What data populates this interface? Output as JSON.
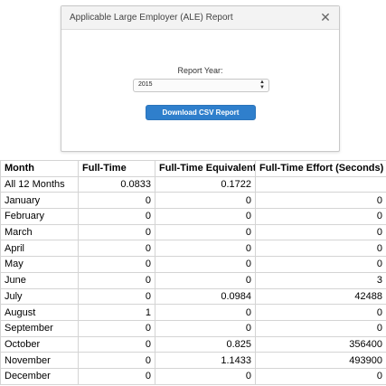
{
  "dialog": {
    "title": "Applicable Large Employer (ALE) Report",
    "close_glyph": "✕",
    "report_year_label": "Report Year:",
    "report_year_value": "2015",
    "download_button": "Download CSV Report"
  },
  "table": {
    "headers": [
      "Month",
      "Full-Time",
      "Full-Time Equivalent",
      "Full-Time Effort (Seconds)"
    ],
    "rows": [
      {
        "month": "All 12 Months",
        "full_time": "0.0833",
        "fte": "0.1722",
        "effort": ""
      },
      {
        "month": "January",
        "full_time": "0",
        "fte": "0",
        "effort": "0"
      },
      {
        "month": "February",
        "full_time": "0",
        "fte": "0",
        "effort": "0"
      },
      {
        "month": "March",
        "full_time": "0",
        "fte": "0",
        "effort": "0"
      },
      {
        "month": "April",
        "full_time": "0",
        "fte": "0",
        "effort": "0"
      },
      {
        "month": "May",
        "full_time": "0",
        "fte": "0",
        "effort": "0"
      },
      {
        "month": "June",
        "full_time": "0",
        "fte": "0",
        "effort": "3"
      },
      {
        "month": "July",
        "full_time": "0",
        "fte": "0.0984",
        "effort": "42488"
      },
      {
        "month": "August",
        "full_time": "1",
        "fte": "0",
        "effort": "0"
      },
      {
        "month": "September",
        "full_time": "0",
        "fte": "0",
        "effort": "0"
      },
      {
        "month": "October",
        "full_time": "0",
        "fte": "0.825",
        "effort": "356400"
      },
      {
        "month": "November",
        "full_time": "0",
        "fte": "1.1433",
        "effort": "493900"
      },
      {
        "month": "December",
        "full_time": "0",
        "fte": "0",
        "effort": "0"
      }
    ]
  }
}
